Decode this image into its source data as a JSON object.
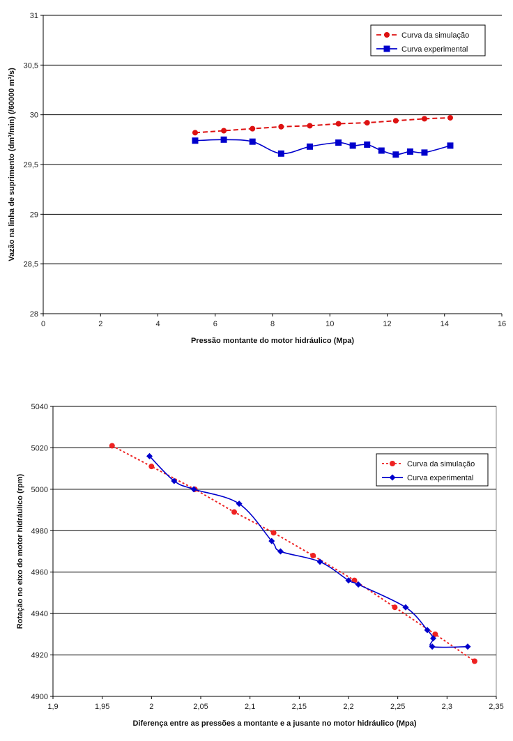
{
  "chart_data": [
    {
      "type": "line",
      "xlabel": "Pressão montante do motor hidráulico (Mpa)",
      "ylabel": "Vazão na linha de suprimento (dm³/min) (/60000 m³/s)",
      "xlim": [
        0,
        16
      ],
      "ylim": [
        28,
        31
      ],
      "x_ticks": [
        "0",
        "2",
        "4",
        "6",
        "8",
        "10",
        "12",
        "14",
        "16"
      ],
      "y_ticks": [
        "28",
        "28,5",
        "29",
        "29,5",
        "30",
        "30,5",
        "31"
      ],
      "grid": "horizontal",
      "legend_position": "top-right",
      "series": [
        {
          "name": "Curva da simulação",
          "color": "#dd1111",
          "line": "dashed",
          "marker": "circle",
          "x": [
            5.3,
            6.3,
            7.3,
            8.3,
            9.3,
            10.3,
            11.3,
            12.3,
            13.3,
            14.2
          ],
          "y": [
            29.82,
            29.84,
            29.86,
            29.88,
            29.89,
            29.91,
            29.92,
            29.94,
            29.96,
            29.97
          ]
        },
        {
          "name": "Curva experimental",
          "color": "#0000cc",
          "line": "solid",
          "marker": "square",
          "x": [
            5.3,
            6.3,
            7.3,
            8.3,
            9.3,
            10.3,
            10.8,
            11.3,
            11.8,
            12.3,
            12.8,
            13.3,
            14.2
          ],
          "y": [
            29.74,
            29.75,
            29.73,
            29.61,
            29.68,
            29.72,
            29.69,
            29.7,
            29.64,
            29.6,
            29.63,
            29.62,
            29.69
          ]
        }
      ]
    },
    {
      "type": "line",
      "xlabel": "Diferença entre as pressões a montante e a jusante no motor hidráulico (Mpa)",
      "ylabel": "Rotação no eixo do motor hidráulico (rpm)",
      "xlim": [
        1.9,
        2.35
      ],
      "ylim": [
        4900,
        5040
      ],
      "x_ticks": [
        "1,9",
        "1,95",
        "2",
        "2,05",
        "2,1",
        "2,15",
        "2,2",
        "2,25",
        "2,3",
        "2,35"
      ],
      "y_ticks": [
        "4900",
        "4920",
        "4940",
        "4960",
        "4980",
        "5000",
        "5020",
        "5040"
      ],
      "grid": "horizontal",
      "legend_position": "top-right",
      "series": [
        {
          "name": "Curva da simulação",
          "color": "#ee2222",
          "line": "dotted",
          "marker": "circle",
          "x": [
            1.96,
            2.0,
            2.044,
            2.084,
            2.124,
            2.164,
            2.206,
            2.247,
            2.288,
            2.328
          ],
          "y": [
            5021,
            5011,
            5000,
            4989,
            4979,
            4968,
            4956,
            4943,
            4930,
            4917
          ]
        },
        {
          "name": "Curva experimental",
          "color": "#0000cc",
          "line": "solid",
          "marker": "diamond",
          "x": [
            1.998,
            2.023,
            2.043,
            2.089,
            2.122,
            2.131,
            2.171,
            2.2,
            2.21,
            2.258,
            2.28,
            2.286,
            2.285,
            2.321
          ],
          "y": [
            5016,
            5004,
            5000,
            4993,
            4975,
            4970,
            4965,
            4956,
            4954,
            4943,
            4932,
            4928,
            4924,
            4924
          ]
        }
      ]
    }
  ]
}
